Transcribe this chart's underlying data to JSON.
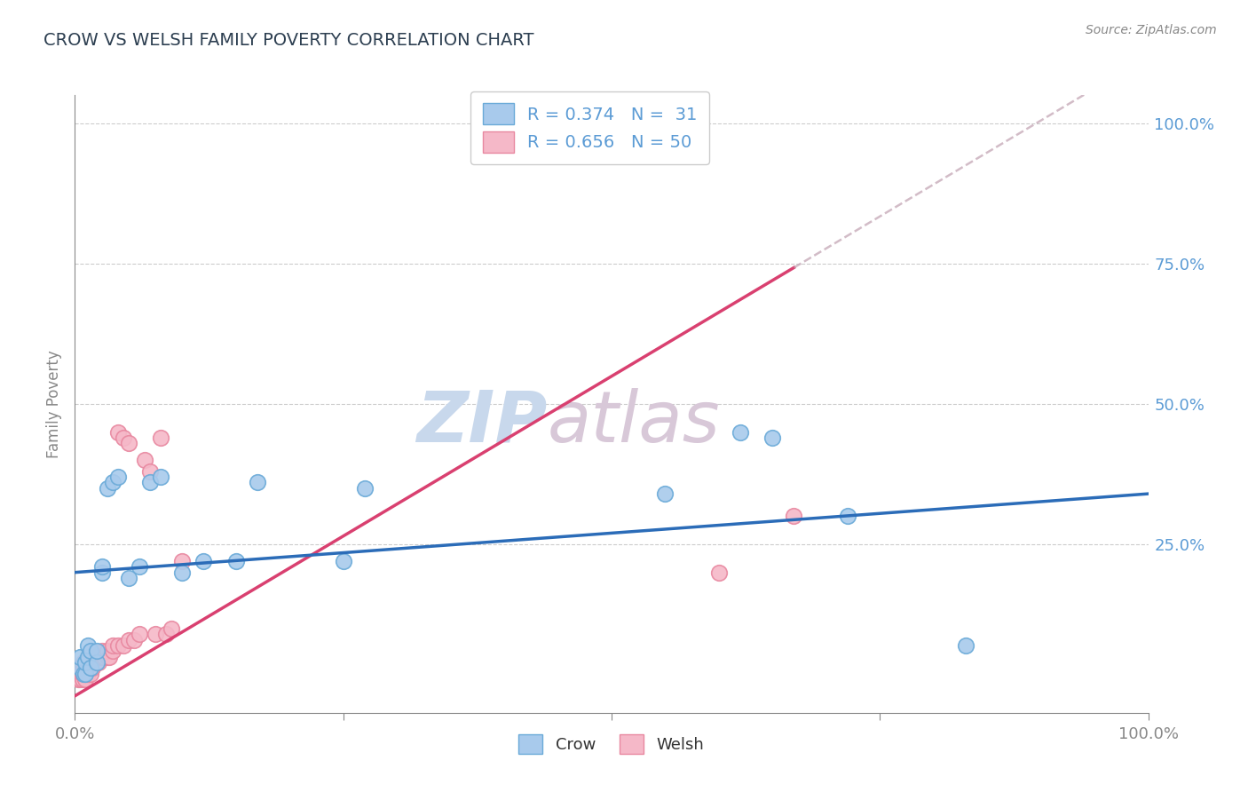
{
  "title": "CROW VS WELSH FAMILY POVERTY CORRELATION CHART",
  "source": "Source: ZipAtlas.com",
  "ylabel": "Family Poverty",
  "xlim": [
    0.0,
    1.0
  ],
  "ylim": [
    -0.05,
    1.05
  ],
  "crow_color": "#A8CAEC",
  "crow_edge_color": "#6AAAD8",
  "welsh_color": "#F5B8C8",
  "welsh_edge_color": "#E888A0",
  "trend_crow_color": "#2B6CB8",
  "trend_welsh_color": "#D94070",
  "crow_R": 0.374,
  "crow_N": 31,
  "welsh_R": 0.656,
  "welsh_N": 50,
  "crow_x": [
    0.005,
    0.005,
    0.008,
    0.01,
    0.01,
    0.012,
    0.012,
    0.015,
    0.015,
    0.02,
    0.02,
    0.025,
    0.025,
    0.03,
    0.035,
    0.04,
    0.05,
    0.06,
    0.07,
    0.08,
    0.1,
    0.12,
    0.15,
    0.17,
    0.25,
    0.27,
    0.55,
    0.62,
    0.65,
    0.72,
    0.83
  ],
  "crow_y": [
    0.03,
    0.05,
    0.02,
    0.02,
    0.04,
    0.05,
    0.07,
    0.03,
    0.06,
    0.04,
    0.06,
    0.2,
    0.21,
    0.35,
    0.36,
    0.37,
    0.19,
    0.21,
    0.36,
    0.37,
    0.2,
    0.22,
    0.22,
    0.36,
    0.22,
    0.35,
    0.34,
    0.45,
    0.44,
    0.3,
    0.07
  ],
  "welsh_x": [
    0.003,
    0.005,
    0.005,
    0.007,
    0.007,
    0.008,
    0.008,
    0.008,
    0.009,
    0.01,
    0.01,
    0.01,
    0.012,
    0.012,
    0.013,
    0.013,
    0.015,
    0.015,
    0.016,
    0.018,
    0.018,
    0.02,
    0.02,
    0.022,
    0.022,
    0.025,
    0.025,
    0.027,
    0.03,
    0.03,
    0.032,
    0.035,
    0.035,
    0.04,
    0.04,
    0.045,
    0.045,
    0.05,
    0.05,
    0.055,
    0.06,
    0.065,
    0.07,
    0.075,
    0.08,
    0.085,
    0.09,
    0.1,
    0.6,
    0.67
  ],
  "welsh_y": [
    0.01,
    0.01,
    0.02,
    0.01,
    0.02,
    0.02,
    0.03,
    0.04,
    0.03,
    0.01,
    0.02,
    0.03,
    0.02,
    0.03,
    0.03,
    0.04,
    0.02,
    0.04,
    0.03,
    0.04,
    0.05,
    0.04,
    0.05,
    0.04,
    0.05,
    0.05,
    0.06,
    0.05,
    0.05,
    0.06,
    0.05,
    0.06,
    0.07,
    0.07,
    0.45,
    0.07,
    0.44,
    0.08,
    0.43,
    0.08,
    0.09,
    0.4,
    0.38,
    0.09,
    0.44,
    0.09,
    0.1,
    0.22,
    0.2,
    0.3
  ],
  "background_color": "#FFFFFF",
  "grid_color": "#CCCCCC",
  "axis_color": "#888888",
  "title_color": "#2C3E50",
  "label_color": "#5B9BD5",
  "watermark_color": "#D8E8F5",
  "legend_label1": "R = 0.374   N =  31",
  "legend_label2": "R = 0.656   N = 50"
}
